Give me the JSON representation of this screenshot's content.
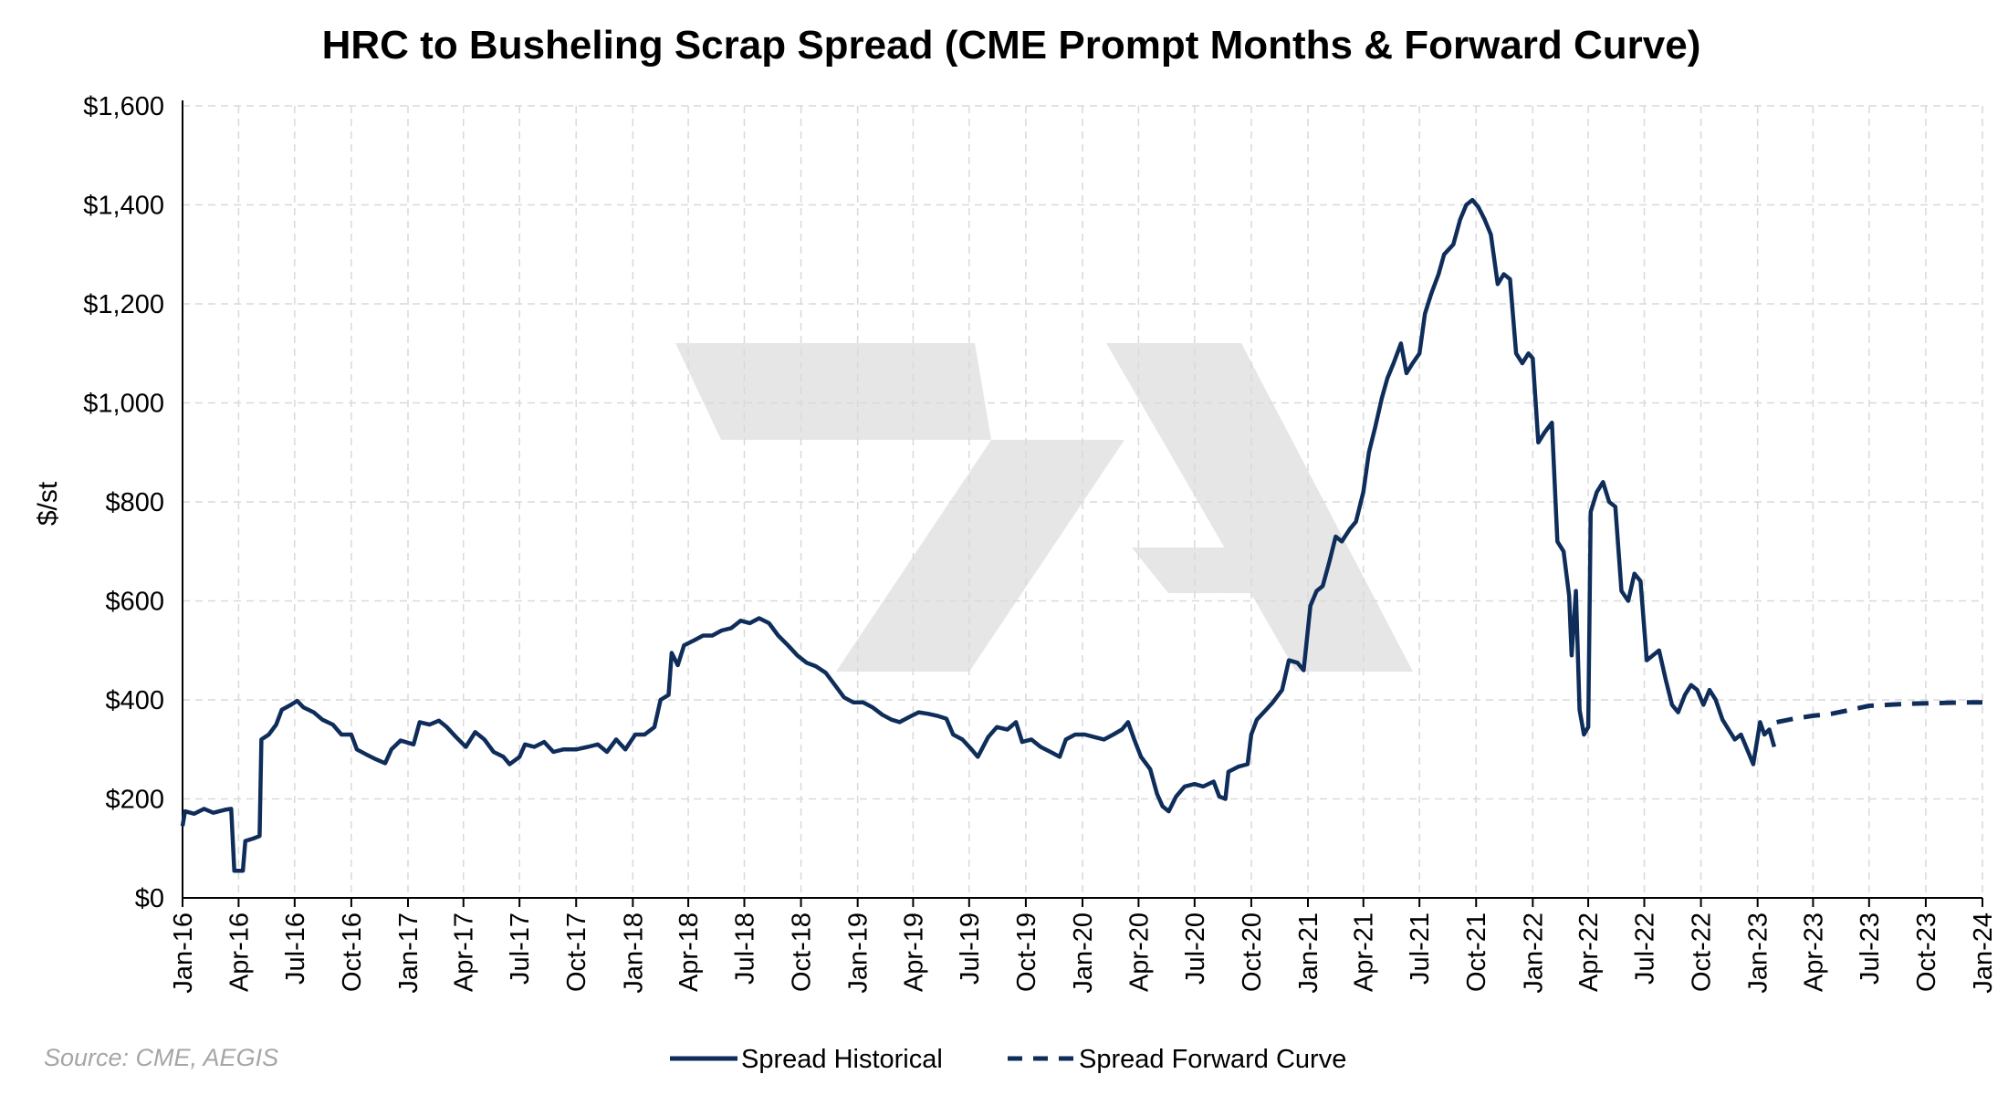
{
  "chart_data": {
    "type": "line",
    "title": "HRC to Busheling Scrap Spread (CME Prompt Months & Forward Curve)",
    "ylabel": "$/st",
    "xlabel": "",
    "source": "Source: CME, AEGIS",
    "ylim": [
      0,
      1600
    ],
    "y_ticks": [
      0,
      200,
      400,
      600,
      800,
      1000,
      1200,
      1400,
      1600
    ],
    "y_tick_labels": [
      "$0",
      "$200",
      "$400",
      "$600",
      "$800",
      "$1,000",
      "$1,200",
      "$1,400",
      "$1,600"
    ],
    "x_ticks": [
      "2016-01-01",
      "2016-04-01",
      "2016-07-01",
      "2016-10-01",
      "2017-01-01",
      "2017-04-01",
      "2017-07-01",
      "2017-10-01",
      "2018-01-01",
      "2018-04-01",
      "2018-07-01",
      "2018-10-01",
      "2019-01-01",
      "2019-04-01",
      "2019-07-01",
      "2019-10-01",
      "2020-01-01",
      "2020-04-01",
      "2020-07-01",
      "2020-10-01",
      "2021-01-01",
      "2021-04-01",
      "2021-07-01",
      "2021-10-01",
      "2022-01-01",
      "2022-04-01",
      "2022-07-01",
      "2022-10-01",
      "2023-01-01",
      "2023-04-01",
      "2023-07-01",
      "2023-10-01",
      "2024-01-01"
    ],
    "x_tick_labels": [
      "Jan-16",
      "Apr-16",
      "Jul-16",
      "Oct-16",
      "Jan-17",
      "Apr-17",
      "Jul-17",
      "Oct-17",
      "Jan-18",
      "Apr-18",
      "Jul-18",
      "Oct-18",
      "Jan-19",
      "Apr-19",
      "Jul-19",
      "Oct-19",
      "Jan-20",
      "Apr-20",
      "Jul-20",
      "Oct-20",
      "Jan-21",
      "Apr-21",
      "Jul-21",
      "Oct-21",
      "Jan-22",
      "Apr-22",
      "Jul-22",
      "Oct-22",
      "Jan-23",
      "Apr-23",
      "Jul-23",
      "Oct-23",
      "Jan-24"
    ],
    "grid": true,
    "legend_position": "bottom",
    "watermark_glyph": "↗",
    "colors": {
      "line": "#0f2d5a",
      "grid": "#d9d9d9",
      "watermark": "#e6e6e6",
      "source": "#a6a6a6"
    },
    "series": [
      {
        "name": "Spread Historical",
        "style": "solid",
        "points": [
          [
            "2016-01-01",
            145
          ],
          [
            "2016-01-05",
            175
          ],
          [
            "2016-01-20",
            170
          ],
          [
            "2016-02-05",
            180
          ],
          [
            "2016-02-20",
            172
          ],
          [
            "2016-03-10",
            178
          ],
          [
            "2016-03-20",
            180
          ],
          [
            "2016-03-25",
            55
          ],
          [
            "2016-04-08",
            55
          ],
          [
            "2016-04-12",
            115
          ],
          [
            "2016-04-25",
            120
          ],
          [
            "2016-05-05",
            125
          ],
          [
            "2016-05-08",
            320
          ],
          [
            "2016-05-20",
            330
          ],
          [
            "2016-06-01",
            350
          ],
          [
            "2016-06-10",
            380
          ],
          [
            "2016-06-25",
            390
          ],
          [
            "2016-07-05",
            398
          ],
          [
            "2016-07-15",
            385
          ],
          [
            "2016-08-01",
            375
          ],
          [
            "2016-08-15",
            360
          ],
          [
            "2016-09-01",
            350
          ],
          [
            "2016-09-15",
            330
          ],
          [
            "2016-10-01",
            330
          ],
          [
            "2016-10-10",
            300
          ],
          [
            "2016-10-25",
            290
          ],
          [
            "2016-11-10",
            280
          ],
          [
            "2016-11-25",
            272
          ],
          [
            "2016-12-05",
            300
          ],
          [
            "2016-12-20",
            318
          ],
          [
            "2017-01-10",
            310
          ],
          [
            "2017-01-20",
            355
          ],
          [
            "2017-02-05",
            350
          ],
          [
            "2017-02-20",
            358
          ],
          [
            "2017-03-05",
            345
          ],
          [
            "2017-03-20",
            325
          ],
          [
            "2017-04-05",
            305
          ],
          [
            "2017-04-20",
            335
          ],
          [
            "2017-05-05",
            320
          ],
          [
            "2017-05-20",
            295
          ],
          [
            "2017-06-05",
            285
          ],
          [
            "2017-06-15",
            270
          ],
          [
            "2017-07-01",
            285
          ],
          [
            "2017-07-10",
            310
          ],
          [
            "2017-07-25",
            305
          ],
          [
            "2017-08-10",
            315
          ],
          [
            "2017-08-25",
            295
          ],
          [
            "2017-09-10",
            300
          ],
          [
            "2017-10-01",
            300
          ],
          [
            "2017-10-20",
            305
          ],
          [
            "2017-11-05",
            310
          ],
          [
            "2017-11-20",
            295
          ],
          [
            "2017-12-05",
            320
          ],
          [
            "2017-12-20",
            300
          ],
          [
            "2018-01-05",
            330
          ],
          [
            "2018-01-20",
            330
          ],
          [
            "2018-02-05",
            345
          ],
          [
            "2018-02-15",
            400
          ],
          [
            "2018-02-28",
            410
          ],
          [
            "2018-03-05",
            495
          ],
          [
            "2018-03-15",
            470
          ],
          [
            "2018-03-25",
            510
          ],
          [
            "2018-04-10",
            520
          ],
          [
            "2018-04-25",
            530
          ],
          [
            "2018-05-10",
            530
          ],
          [
            "2018-05-25",
            540
          ],
          [
            "2018-06-10",
            545
          ],
          [
            "2018-06-25",
            560
          ],
          [
            "2018-07-10",
            555
          ],
          [
            "2018-07-25",
            565
          ],
          [
            "2018-08-10",
            555
          ],
          [
            "2018-08-25",
            530
          ],
          [
            "2018-09-10",
            510
          ],
          [
            "2018-09-25",
            490
          ],
          [
            "2018-10-10",
            475
          ],
          [
            "2018-10-25",
            468
          ],
          [
            "2018-11-10",
            455
          ],
          [
            "2018-11-25",
            430
          ],
          [
            "2018-12-10",
            405
          ],
          [
            "2018-12-25",
            395
          ],
          [
            "2019-01-10",
            395
          ],
          [
            "2019-01-25",
            385
          ],
          [
            "2019-02-10",
            370
          ],
          [
            "2019-02-25",
            360
          ],
          [
            "2019-03-10",
            355
          ],
          [
            "2019-03-25",
            365
          ],
          [
            "2019-04-10",
            375
          ],
          [
            "2019-04-25",
            372
          ],
          [
            "2019-05-10",
            368
          ],
          [
            "2019-05-25",
            362
          ],
          [
            "2019-06-05",
            330
          ],
          [
            "2019-06-20",
            320
          ],
          [
            "2019-07-05",
            300
          ],
          [
            "2019-07-15",
            285
          ],
          [
            "2019-08-01",
            325
          ],
          [
            "2019-08-15",
            345
          ],
          [
            "2019-09-01",
            340
          ],
          [
            "2019-09-15",
            355
          ],
          [
            "2019-09-25",
            315
          ],
          [
            "2019-10-10",
            320
          ],
          [
            "2019-10-25",
            305
          ],
          [
            "2019-11-10",
            295
          ],
          [
            "2019-11-25",
            285
          ],
          [
            "2019-12-05",
            320
          ],
          [
            "2019-12-20",
            330
          ],
          [
            "2020-01-05",
            330
          ],
          [
            "2020-01-20",
            325
          ],
          [
            "2020-02-05",
            320
          ],
          [
            "2020-02-20",
            330
          ],
          [
            "2020-03-05",
            340
          ],
          [
            "2020-03-15",
            355
          ],
          [
            "2020-03-25",
            320
          ],
          [
            "2020-04-05",
            285
          ],
          [
            "2020-04-20",
            260
          ],
          [
            "2020-05-01",
            210
          ],
          [
            "2020-05-10",
            185
          ],
          [
            "2020-05-20",
            175
          ],
          [
            "2020-06-01",
            205
          ],
          [
            "2020-06-15",
            225
          ],
          [
            "2020-07-01",
            230
          ],
          [
            "2020-07-15",
            225
          ],
          [
            "2020-08-01",
            235
          ],
          [
            "2020-08-10",
            205
          ],
          [
            "2020-08-20",
            200
          ],
          [
            "2020-08-25",
            255
          ],
          [
            "2020-09-10",
            265
          ],
          [
            "2020-09-25",
            270
          ],
          [
            "2020-10-01",
            330
          ],
          [
            "2020-10-10",
            360
          ],
          [
            "2020-10-25",
            380
          ],
          [
            "2020-11-05",
            395
          ],
          [
            "2020-11-20",
            420
          ],
          [
            "2020-12-01",
            480
          ],
          [
            "2020-12-15",
            475
          ],
          [
            "2020-12-25",
            460
          ],
          [
            "2021-01-05",
            590
          ],
          [
            "2021-01-15",
            620
          ],
          [
            "2021-01-25",
            630
          ],
          [
            "2021-02-05",
            680
          ],
          [
            "2021-02-15",
            730
          ],
          [
            "2021-02-25",
            720
          ],
          [
            "2021-03-10",
            745
          ],
          [
            "2021-03-20",
            760
          ],
          [
            "2021-04-01",
            820
          ],
          [
            "2021-04-10",
            900
          ],
          [
            "2021-04-20",
            950
          ],
          [
            "2021-05-01",
            1010
          ],
          [
            "2021-05-10",
            1050
          ],
          [
            "2021-05-20",
            1080
          ],
          [
            "2021-06-01",
            1120
          ],
          [
            "2021-06-10",
            1060
          ],
          [
            "2021-06-20",
            1080
          ],
          [
            "2021-07-01",
            1100
          ],
          [
            "2021-07-10",
            1180
          ],
          [
            "2021-07-20",
            1220
          ],
          [
            "2021-08-01",
            1260
          ],
          [
            "2021-08-10",
            1300
          ],
          [
            "2021-08-25",
            1320
          ],
          [
            "2021-09-05",
            1370
          ],
          [
            "2021-09-15",
            1400
          ],
          [
            "2021-09-25",
            1410
          ],
          [
            "2021-10-05",
            1395
          ],
          [
            "2021-10-15",
            1370
          ],
          [
            "2021-10-25",
            1340
          ],
          [
            "2021-11-05",
            1240
          ],
          [
            "2021-11-15",
            1260
          ],
          [
            "2021-11-25",
            1250
          ],
          [
            "2021-12-05",
            1100
          ],
          [
            "2021-12-15",
            1080
          ],
          [
            "2021-12-25",
            1100
          ],
          [
            "2022-01-01",
            1090
          ],
          [
            "2022-01-10",
            920
          ],
          [
            "2022-01-20",
            940
          ],
          [
            "2022-02-01",
            960
          ],
          [
            "2022-02-10",
            720
          ],
          [
            "2022-02-20",
            700
          ],
          [
            "2022-03-01",
            610
          ],
          [
            "2022-03-05",
            490
          ],
          [
            "2022-03-12",
            620
          ],
          [
            "2022-03-18",
            380
          ],
          [
            "2022-03-25",
            330
          ],
          [
            "2022-04-01",
            345
          ],
          [
            "2022-04-05",
            780
          ],
          [
            "2022-04-15",
            820
          ],
          [
            "2022-04-25",
            840
          ],
          [
            "2022-05-05",
            800
          ],
          [
            "2022-05-15",
            790
          ],
          [
            "2022-05-25",
            620
          ],
          [
            "2022-06-05",
            600
          ],
          [
            "2022-06-15",
            655
          ],
          [
            "2022-06-25",
            640
          ],
          [
            "2022-07-05",
            480
          ],
          [
            "2022-07-15",
            490
          ],
          [
            "2022-07-25",
            500
          ],
          [
            "2022-08-05",
            440
          ],
          [
            "2022-08-15",
            390
          ],
          [
            "2022-08-25",
            375
          ],
          [
            "2022-09-05",
            410
          ],
          [
            "2022-09-15",
            430
          ],
          [
            "2022-09-25",
            420
          ],
          [
            "2022-10-05",
            390
          ],
          [
            "2022-10-15",
            420
          ],
          [
            "2022-10-25",
            400
          ],
          [
            "2022-11-05",
            360
          ],
          [
            "2022-11-15",
            340
          ],
          [
            "2022-11-25",
            320
          ],
          [
            "2022-12-05",
            330
          ],
          [
            "2022-12-15",
            300
          ],
          [
            "2022-12-25",
            270
          ],
          [
            "2023-01-05",
            355
          ],
          [
            "2023-01-12",
            330
          ],
          [
            "2023-01-20",
            340
          ],
          [
            "2023-01-28",
            305
          ]
        ]
      },
      {
        "name": "Spread Forward Curve",
        "style": "dashed",
        "points": [
          [
            "2023-02-01",
            355
          ],
          [
            "2023-03-01",
            362
          ],
          [
            "2023-04-01",
            368
          ],
          [
            "2023-05-01",
            372
          ],
          [
            "2023-06-01",
            380
          ],
          [
            "2023-07-01",
            388
          ],
          [
            "2023-08-01",
            390
          ],
          [
            "2023-09-01",
            392
          ],
          [
            "2023-10-01",
            393
          ],
          [
            "2023-11-01",
            394
          ],
          [
            "2023-12-01",
            395
          ],
          [
            "2024-01-01",
            395
          ]
        ]
      }
    ]
  }
}
